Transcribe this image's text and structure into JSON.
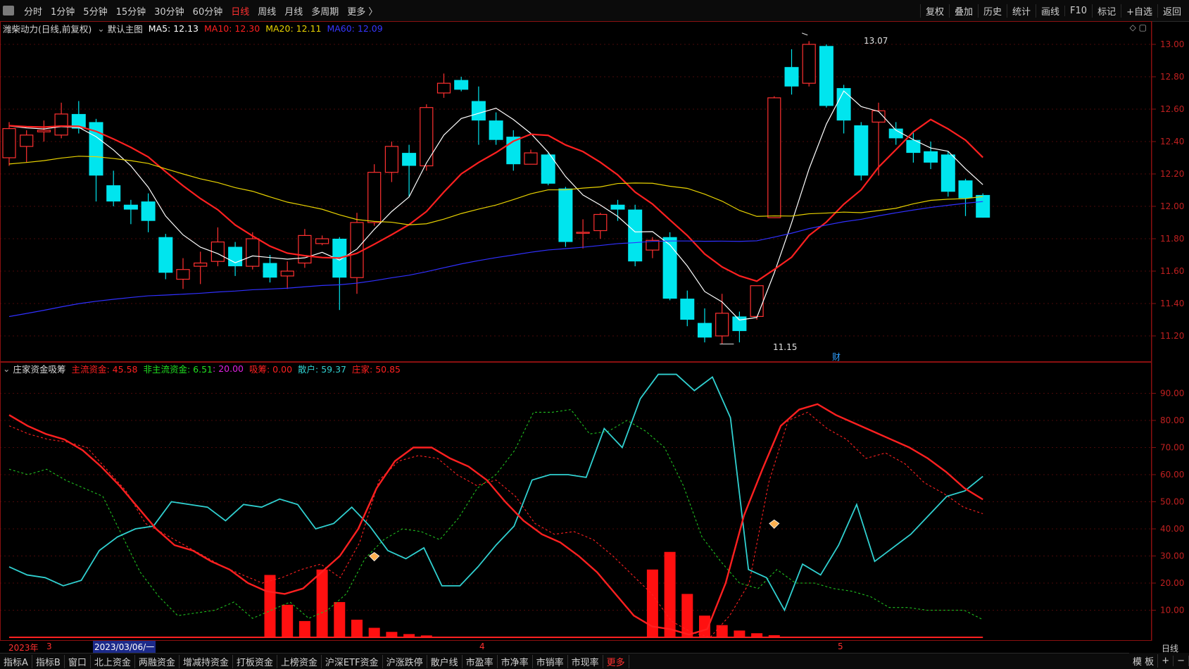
{
  "toolbar": {
    "timeframes": [
      "分时",
      "1分钟",
      "5分钟",
      "15分钟",
      "30分钟",
      "60分钟",
      "日线",
      "周线",
      "月线",
      "多周期",
      "更多 〉"
    ],
    "active": "日线",
    "right_buttons": [
      "复权",
      "叠加",
      "历史",
      "统计",
      "画线",
      "F10",
      "标记",
      "+自选",
      "返回"
    ]
  },
  "main_legend": {
    "stock": "潍柴动力(日线,前复权)",
    "template": "默认主图",
    "ma5": "MA5: 12.13",
    "ma10": "MA10: 12.30",
    "ma20": "MA20: 12.11",
    "ma60": "MA60: 12.09",
    "colors": {
      "ma5": "#ffffff",
      "ma10": "#ff2020",
      "ma20": "#e8d200",
      "ma60": "#3030ff"
    }
  },
  "sub_legend": {
    "name": "庄家资金吸筹",
    "main_fund": "主流资金: 45.58",
    "non_main_fund": "非主流资金: 6.51",
    "extra": ": 20.00",
    "absorb": "吸筹: 0.00",
    "retail": "散户: 59.37",
    "dealer": "庄家: 50.85"
  },
  "annotations": {
    "high": "13.07",
    "low": "11.15",
    "marker": "财"
  },
  "main_axis_labels": [
    "13.00",
    "12.80",
    "12.60",
    "12.40",
    "12.20",
    "12.00",
    "11.80",
    "11.60",
    "11.40",
    "11.20"
  ],
  "sub_axis_labels": [
    "90.00",
    "80.00",
    "70.00",
    "60.00",
    "50.00",
    "40.00",
    "30.00",
    "20.00",
    "10.00"
  ],
  "dates": {
    "year": "2023年",
    "m3": "3",
    "selected": "2023/03/06/一",
    "m4": "4",
    "m5": "5",
    "period": "日线"
  },
  "bottom_tabs": [
    "指标A",
    "指标B",
    "窗口",
    "北上资金",
    "两融资金",
    "增减持资金",
    "打板资金",
    "上榜资金",
    "沪深ETF资金",
    "沪涨跌停",
    "散户线",
    "市盈率",
    "市净率",
    "市销率",
    "市现率",
    "更多"
  ],
  "bottom_right": [
    "模 板"
  ],
  "chart_data": {
    "type": "candlestick",
    "price_range": [
      11.1,
      13.1
    ],
    "candles": [
      [
        12.3,
        12.48,
        12.52,
        12.25
      ],
      [
        12.37,
        12.44,
        12.47,
        12.27
      ],
      [
        12.46,
        12.47,
        12.53,
        12.4
      ],
      [
        12.44,
        12.57,
        12.64,
        12.42
      ],
      [
        12.57,
        12.48,
        12.65,
        12.45
      ],
      [
        12.52,
        12.19,
        12.54,
        12.03
      ],
      [
        12.13,
        12.03,
        12.22,
        12.0
      ],
      [
        12.01,
        11.98,
        12.04,
        11.89
      ],
      [
        12.03,
        11.91,
        12.08,
        11.84
      ],
      [
        11.81,
        11.59,
        11.83,
        11.55
      ],
      [
        11.55,
        11.61,
        11.68,
        11.49
      ],
      [
        11.63,
        11.65,
        11.72,
        11.52
      ],
      [
        11.66,
        11.78,
        11.87,
        11.63
      ],
      [
        11.75,
        11.63,
        11.78,
        11.57
      ],
      [
        11.63,
        11.8,
        11.84,
        11.61
      ],
      [
        11.65,
        11.56,
        11.7,
        11.53
      ],
      [
        11.57,
        11.6,
        11.66,
        11.49
      ],
      [
        11.65,
        11.82,
        11.86,
        11.62
      ],
      [
        11.77,
        11.8,
        11.82,
        11.76
      ],
      [
        11.8,
        11.56,
        11.81,
        11.36
      ],
      [
        11.56,
        11.9,
        11.96,
        11.46
      ],
      [
        11.9,
        12.21,
        12.26,
        11.88
      ],
      [
        12.21,
        12.37,
        12.4,
        12.15
      ],
      [
        12.33,
        12.25,
        12.38,
        12.06
      ],
      [
        12.25,
        12.61,
        12.63,
        12.22
      ],
      [
        12.7,
        12.76,
        12.82,
        12.67
      ],
      [
        12.78,
        12.72,
        12.8,
        12.71
      ],
      [
        12.65,
        12.53,
        12.74,
        12.38
      ],
      [
        12.53,
        12.41,
        12.58,
        12.38
      ],
      [
        12.43,
        12.26,
        12.47,
        12.22
      ],
      [
        12.26,
        12.33,
        12.35,
        12.26
      ],
      [
        12.32,
        12.14,
        12.33,
        12.13
      ],
      [
        12.11,
        11.78,
        12.12,
        11.75
      ],
      [
        11.84,
        11.84,
        11.92,
        11.74
      ],
      [
        11.85,
        11.95,
        11.96,
        11.8
      ],
      [
        12.01,
        11.98,
        12.04,
        11.91
      ],
      [
        11.98,
        11.66,
        12.01,
        11.63
      ],
      [
        11.73,
        11.79,
        11.81,
        11.68
      ],
      [
        11.81,
        11.43,
        11.84,
        11.42
      ],
      [
        11.43,
        11.3,
        11.48,
        11.26
      ],
      [
        11.28,
        11.19,
        11.37,
        11.16
      ],
      [
        11.2,
        11.34,
        11.46,
        11.15
      ],
      [
        11.32,
        11.23,
        11.35,
        11.16
      ],
      [
        11.32,
        11.51,
        11.51,
        11.3
      ],
      [
        11.93,
        12.67,
        12.68,
        11.93
      ],
      [
        12.86,
        12.74,
        12.97,
        12.69
      ],
      [
        12.76,
        13.0,
        13.02,
        12.74
      ],
      [
        12.99,
        12.62,
        13.0,
        12.61
      ],
      [
        12.73,
        12.53,
        12.75,
        12.45
      ],
      [
        12.5,
        12.19,
        12.52,
        12.16
      ],
      [
        12.52,
        12.59,
        12.64,
        12.19
      ],
      [
        12.48,
        12.42,
        12.52,
        12.38
      ],
      [
        12.41,
        12.33,
        12.46,
        12.27
      ],
      [
        12.34,
        12.27,
        12.4,
        12.23
      ],
      [
        12.32,
        12.09,
        12.34,
        12.06
      ],
      [
        12.16,
        12.05,
        12.17,
        11.94
      ],
      [
        12.07,
        11.93,
        12.08,
        11.93
      ]
    ],
    "sub_range": [
      0,
      100
    ],
    "histogram": [
      {
        "i": 15,
        "v": 23
      },
      {
        "i": 16,
        "v": 12
      },
      {
        "i": 17,
        "v": 6
      },
      {
        "i": 18,
        "v": 25
      },
      {
        "i": 19,
        "v": 13
      },
      {
        "i": 20,
        "v": 6.5
      },
      {
        "i": 21,
        "v": 3.5
      },
      {
        "i": 22,
        "v": 2
      },
      {
        "i": 23,
        "v": 1.2
      },
      {
        "i": 24,
        "v": 0.7
      },
      {
        "i": 37,
        "v": 25
      },
      {
        "i": 38,
        "v": 31.5
      },
      {
        "i": 39,
        "v": 16
      },
      {
        "i": 40,
        "v": 8
      },
      {
        "i": 41,
        "v": 4.5
      },
      {
        "i": 42,
        "v": 2.5
      },
      {
        "i": 43,
        "v": 1.5
      },
      {
        "i": 44,
        "v": 0.8
      }
    ],
    "dealer": [
      82,
      78,
      75,
      73,
      69,
      63,
      56,
      48,
      40,
      34,
      32,
      28,
      25,
      20,
      17,
      16,
      18,
      24,
      30,
      40,
      55,
      65,
      70,
      70,
      66,
      63,
      58,
      50,
      43,
      38,
      35,
      30,
      24,
      16,
      8,
      4,
      3,
      1,
      3,
      20,
      45,
      62,
      78,
      84,
      86,
      82,
      79,
      76,
      73,
      70,
      66,
      61,
      55,
      50.85
    ],
    "main_dashed": [
      78,
      75,
      73,
      72,
      70,
      62,
      54,
      42,
      38,
      34,
      30,
      26,
      23,
      20,
      22,
      25,
      27,
      22,
      35,
      58,
      65,
      67,
      66,
      60,
      56,
      58,
      52,
      42,
      38,
      39,
      36,
      30,
      23,
      16,
      6,
      2,
      0,
      8,
      20,
      57,
      80,
      83,
      77,
      73,
      66,
      68,
      64,
      57,
      53,
      48,
      45.58
    ],
    "non_main": [
      62,
      60,
      62,
      58,
      55,
      52,
      38,
      24,
      15,
      8,
      9,
      10,
      13,
      7,
      10,
      13,
      7,
      10,
      16,
      29,
      36,
      40,
      39,
      36,
      44,
      55,
      60,
      69,
      83,
      83,
      84,
      75,
      76,
      80,
      76,
      70,
      56,
      37,
      28,
      20,
      18,
      25,
      20,
      20,
      18,
      17,
      15,
      11,
      11,
      10,
      10,
      10,
      6.51
    ],
    "retail": [
      26,
      23,
      22,
      19,
      21,
      32,
      37,
      40,
      41,
      50,
      49,
      48,
      43,
      49,
      48,
      51,
      49,
      40,
      42,
      48,
      41,
      32,
      29,
      33,
      19,
      19,
      26,
      34,
      41,
      58,
      60,
      60,
      59,
      77,
      70,
      88,
      97,
      97,
      91,
      96,
      81,
      25,
      22,
      10,
      27,
      23,
      34,
      49,
      28,
      33,
      38,
      45,
      52,
      54,
      59.37
    ],
    "diamond_markers": [
      {
        "i": 21,
        "v": 30
      },
      {
        "i": 44,
        "v": 42
      }
    ]
  }
}
